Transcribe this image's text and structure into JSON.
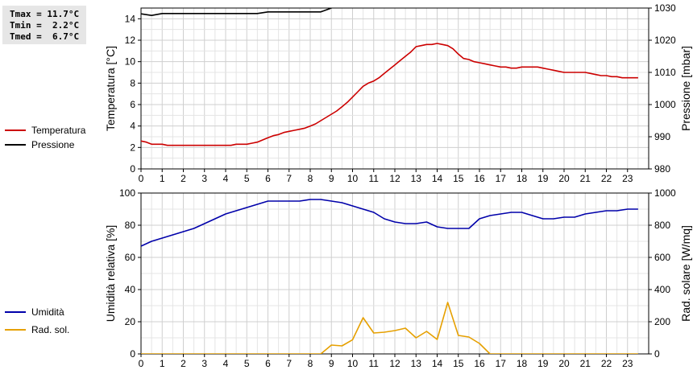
{
  "stats": {
    "tmax": "Tmax = 11.7°C",
    "tmin": "Tmin =  2.2°C",
    "tmed": "Tmed =  6.7°C"
  },
  "legend_top": [
    {
      "label": "Temperatura",
      "color": "#cc0000"
    },
    {
      "label": "Pressione",
      "color": "#000000"
    }
  ],
  "legend_bottom": [
    {
      "label": "Umidità",
      "color": "#0000aa"
    },
    {
      "label": "Rad. sol.",
      "color": "#e6a000"
    }
  ],
  "chart_data": [
    {
      "type": "line",
      "xlim": [
        0,
        24
      ],
      "x_ticks": [
        0,
        1,
        2,
        3,
        4,
        5,
        6,
        7,
        8,
        9,
        10,
        11,
        12,
        13,
        14,
        15,
        16,
        17,
        18,
        19,
        20,
        21,
        22,
        23
      ],
      "ylabel": "Temperatura [°C]",
      "ylim": [
        0,
        15
      ],
      "y_ticks": [
        0,
        2,
        4,
        6,
        8,
        10,
        12,
        14
      ],
      "y2label": "Pressione [mbar]",
      "y2lim": [
        980,
        1030
      ],
      "y2_ticks": [
        980,
        990,
        1000,
        1010,
        1020,
        1030
      ],
      "grid": true,
      "series": [
        {
          "name": "Temperatura",
          "axis": "left",
          "color": "#cc0000",
          "x": [
            0,
            0.25,
            0.5,
            0.75,
            1,
            1.25,
            1.5,
            1.75,
            2,
            2.5,
            3,
            3.5,
            4,
            4.25,
            4.5,
            4.75,
            5,
            5.25,
            5.5,
            5.75,
            6,
            6.25,
            6.5,
            6.75,
            7,
            7.25,
            7.5,
            7.75,
            8,
            8.25,
            8.5,
            8.75,
            9,
            9.25,
            9.5,
            9.75,
            10,
            10.25,
            10.5,
            10.75,
            11,
            11.25,
            11.5,
            11.75,
            12,
            12.25,
            12.5,
            12.75,
            13,
            13.25,
            13.5,
            13.75,
            14,
            14.25,
            14.5,
            14.75,
            15,
            15.25,
            15.5,
            15.75,
            16,
            16.25,
            16.5,
            16.75,
            17,
            17.25,
            17.5,
            17.75,
            18,
            18.25,
            18.5,
            18.75,
            19,
            19.25,
            19.5,
            19.75,
            20,
            20.25,
            20.5,
            20.75,
            21,
            21.25,
            21.5,
            21.75,
            22,
            22.25,
            22.5,
            22.75,
            23,
            23.25,
            23.5
          ],
          "y": [
            2.6,
            2.5,
            2.3,
            2.3,
            2.3,
            2.2,
            2.2,
            2.2,
            2.2,
            2.2,
            2.2,
            2.2,
            2.2,
            2.2,
            2.3,
            2.3,
            2.3,
            2.4,
            2.5,
            2.7,
            2.9,
            3.1,
            3.2,
            3.4,
            3.5,
            3.6,
            3.7,
            3.8,
            4.0,
            4.2,
            4.5,
            4.8,
            5.1,
            5.4,
            5.8,
            6.2,
            6.7,
            7.2,
            7.7,
            8.0,
            8.2,
            8.5,
            8.9,
            9.3,
            9.7,
            10.1,
            10.5,
            10.9,
            11.4,
            11.5,
            11.6,
            11.6,
            11.7,
            11.6,
            11.5,
            11.2,
            10.7,
            10.3,
            10.2,
            10.0,
            9.9,
            9.8,
            9.7,
            9.6,
            9.5,
            9.5,
            9.4,
            9.4,
            9.5,
            9.5,
            9.5,
            9.5,
            9.4,
            9.3,
            9.2,
            9.1,
            9.0,
            9.0,
            9.0,
            9.0,
            9.0,
            8.9,
            8.8,
            8.7,
            8.7,
            8.6,
            8.6,
            8.5,
            8.5,
            8.5,
            8.5
          ]
        },
        {
          "name": "Pressione",
          "axis": "right",
          "color": "#000000",
          "x": [
            0,
            0.5,
            1,
            5.5,
            6,
            8.5,
            9
          ],
          "y": [
            1028.2,
            1027.7,
            1028.3,
            1028.3,
            1028.8,
            1028.8,
            1030
          ]
        }
      ]
    },
    {
      "type": "line",
      "xlim": [
        0,
        24
      ],
      "x_ticks": [
        0,
        1,
        2,
        3,
        4,
        5,
        6,
        7,
        8,
        9,
        10,
        11,
        12,
        13,
        14,
        15,
        16,
        17,
        18,
        19,
        20,
        21,
        22,
        23
      ],
      "ylabel": "Umidità relativa [%]",
      "ylim": [
        0,
        100
      ],
      "y_ticks": [
        0,
        20,
        40,
        60,
        80,
        100
      ],
      "y2label": "Rad. solare [W/mq]",
      "y2lim": [
        0,
        1000
      ],
      "y2_ticks": [
        0,
        200,
        400,
        600,
        800,
        1000
      ],
      "grid": true,
      "series": [
        {
          "name": "Umidità",
          "axis": "left",
          "color": "#0000aa",
          "x": [
            0,
            0.5,
            1,
            1.5,
            2,
            2.5,
            3,
            3.5,
            4,
            4.5,
            5,
            5.5,
            6,
            6.5,
            7,
            7.5,
            8,
            8.5,
            9,
            9.5,
            10,
            10.5,
            11,
            11.5,
            12,
            12.5,
            13,
            13.5,
            14,
            14.5,
            15,
            15.5,
            16,
            16.5,
            17,
            17.5,
            18,
            18.5,
            19,
            19.5,
            20,
            20.5,
            21,
            21.5,
            22,
            22.5,
            23,
            23.5
          ],
          "y": [
            67,
            70,
            72,
            74,
            76,
            78,
            81,
            84,
            87,
            89,
            91,
            93,
            95,
            95,
            95,
            95,
            96,
            96,
            95,
            94,
            92,
            90,
            88,
            84,
            82,
            81,
            81,
            82,
            79,
            78,
            78,
            78,
            84,
            86,
            87,
            88,
            88,
            86,
            84,
            84,
            85,
            85,
            87,
            88,
            89,
            89,
            90,
            90
          ]
        },
        {
          "name": "Rad. sol.",
          "axis": "right",
          "color": "#e6a000",
          "x": [
            0,
            8.5,
            9,
            9.5,
            10,
            10.5,
            11,
            11.5,
            12,
            12.5,
            13,
            13.5,
            14,
            14.5,
            15,
            15.5,
            16,
            16.5,
            17,
            23.5
          ],
          "y": [
            0,
            0,
            55,
            50,
            88,
            225,
            130,
            135,
            145,
            160,
            100,
            140,
            90,
            320,
            115,
            105,
            65,
            0,
            0,
            0
          ]
        }
      ]
    }
  ]
}
